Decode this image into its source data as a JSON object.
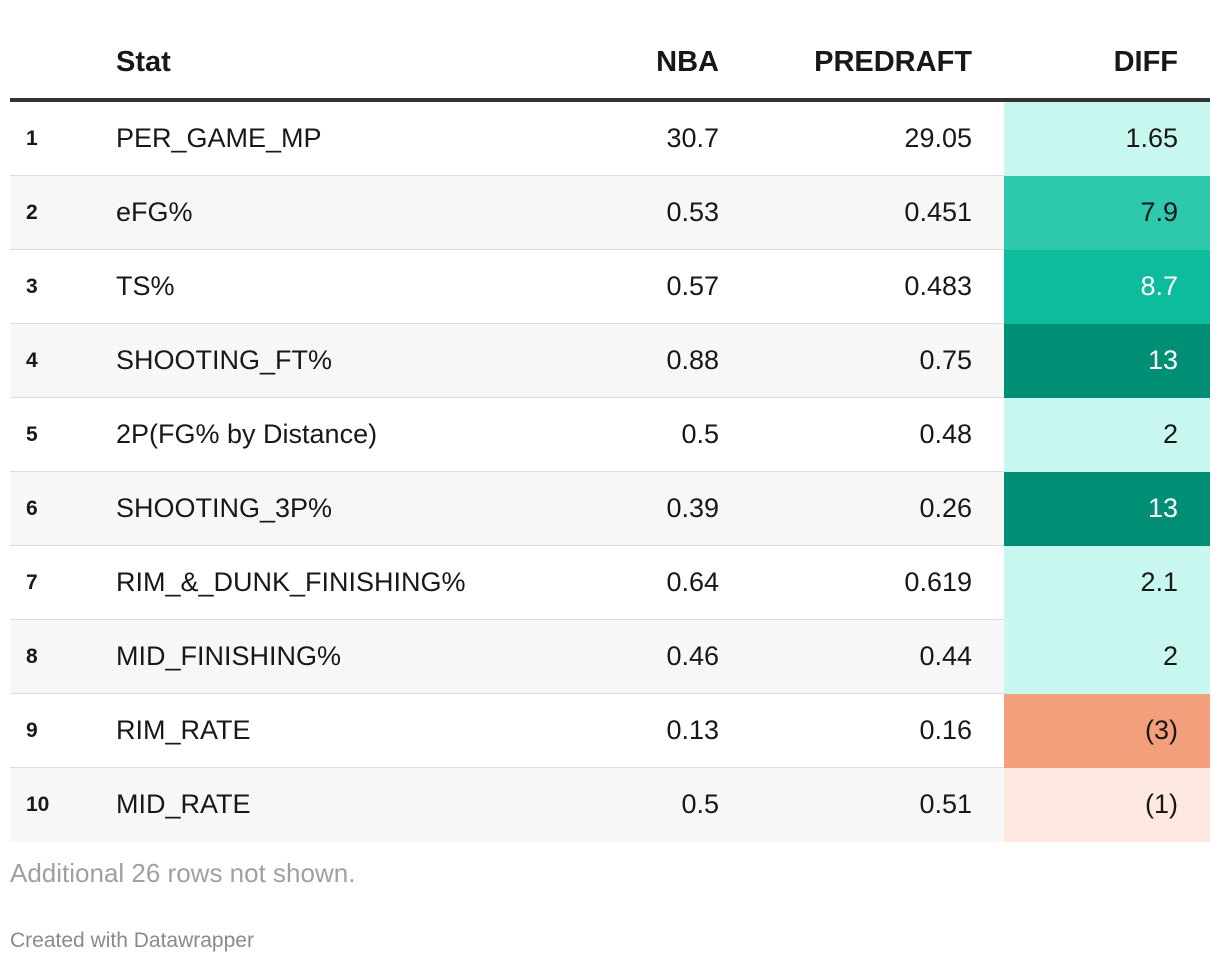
{
  "chart_data": {
    "type": "table",
    "columns": [
      "",
      "Stat",
      "NBA",
      "PREDRAFT",
      "DIFF"
    ],
    "rows": [
      {
        "rank": "1",
        "stat": "PER_GAME_MP",
        "nba": "30.7",
        "predraft": "29.05",
        "diff": "1.65",
        "diff_value": 1.65,
        "diff_color": "#c7f7ee",
        "diff_text_color": "#181818"
      },
      {
        "rank": "2",
        "stat": "eFG%",
        "nba": "0.53",
        "predraft": "0.451",
        "diff": "7.9",
        "diff_value": 7.9,
        "diff_color": "#2ec9ad",
        "diff_text_color": "#181818"
      },
      {
        "rank": "3",
        "stat": "TS%",
        "nba": "0.57",
        "predraft": "0.483",
        "diff": "8.7",
        "diff_value": 8.7,
        "diff_color": "#0dbc9d",
        "diff_text_color": "#ffffff"
      },
      {
        "rank": "4",
        "stat": "SHOOTING_FT%",
        "nba": "0.88",
        "predraft": "0.75",
        "diff": "13",
        "diff_value": 13,
        "diff_color": "#008f75",
        "diff_text_color": "#ffffff"
      },
      {
        "rank": "5",
        "stat": "2P(FG% by Distance)",
        "nba": "0.5",
        "predraft": "0.48",
        "diff": "2",
        "diff_value": 2,
        "diff_color": "#c7f7ee",
        "diff_text_color": "#181818"
      },
      {
        "rank": "6",
        "stat": "SHOOTING_3P%",
        "nba": "0.39",
        "predraft": "0.26",
        "diff": "13",
        "diff_value": 13,
        "diff_color": "#008f75",
        "diff_text_color": "#ffffff"
      },
      {
        "rank": "7",
        "stat": "RIM_&_DUNK_FINISHING%",
        "nba": "0.64",
        "predraft": "0.619",
        "diff": "2.1",
        "diff_value": 2.1,
        "diff_color": "#c7f7ee",
        "diff_text_color": "#181818"
      },
      {
        "rank": "8",
        "stat": "MID_FINISHING%",
        "nba": "0.46",
        "predraft": "0.44",
        "diff": "2",
        "diff_value": 2,
        "diff_color": "#c7f7ee",
        "diff_text_color": "#181818"
      },
      {
        "rank": "9",
        "stat": "RIM_RATE",
        "nba": "0.13",
        "predraft": "0.16",
        "diff": "(3)",
        "diff_value": -3,
        "diff_color": "#f49f7b",
        "diff_text_color": "#181818"
      },
      {
        "rank": "10",
        "stat": "MID_RATE",
        "nba": "0.5",
        "predraft": "0.51",
        "diff": "(1)",
        "diff_value": -1,
        "diff_color": "#fde9df",
        "diff_text_color": "#181818"
      }
    ]
  },
  "header": {
    "stat": "Stat",
    "nba": "NBA",
    "predraft": "PREDRAFT",
    "diff": "DIFF"
  },
  "footer": {
    "note": "Additional 26 rows not shown.",
    "credit": "Created with Datawrapper"
  }
}
